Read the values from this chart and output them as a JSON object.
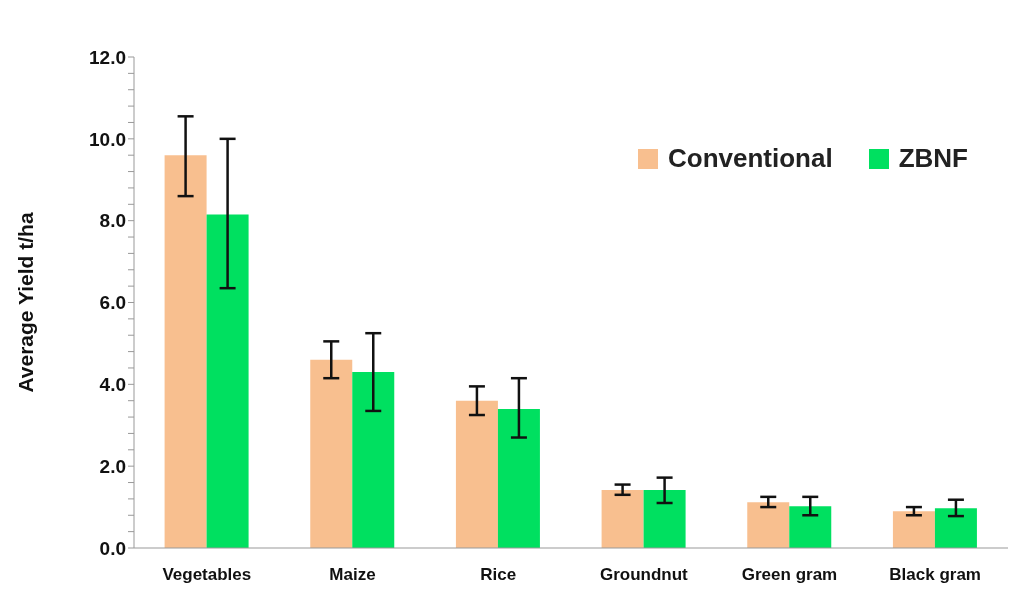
{
  "chart_data": {
    "type": "bar",
    "ylabel": "Average Yield t/ha",
    "categories": [
      "Vegetables",
      "Maize",
      "Rice",
      "Groundnut",
      "Green gram",
      "Black gram"
    ],
    "series": [
      {
        "name": "Conventional",
        "color": "#f8bf8f",
        "values": [
          9.6,
          4.6,
          3.6,
          1.42,
          1.12,
          0.9
        ],
        "errors": [
          [
            8.6,
            10.55
          ],
          [
            4.15,
            5.05
          ],
          [
            3.25,
            3.95
          ],
          [
            1.3,
            1.55
          ],
          [
            1.0,
            1.25
          ],
          [
            0.8,
            1.0
          ]
        ]
      },
      {
        "name": "ZBNF",
        "color": "#00e060",
        "values": [
          8.15,
          4.3,
          3.4,
          1.42,
          1.02,
          0.97
        ],
        "errors": [
          [
            6.35,
            10.0
          ],
          [
            3.35,
            5.25
          ],
          [
            2.7,
            4.15
          ],
          [
            1.1,
            1.72
          ],
          [
            0.8,
            1.25
          ],
          [
            0.78,
            1.18
          ]
        ]
      }
    ],
    "ylim": [
      0,
      12
    ],
    "yticks": [
      {
        "value": 0,
        "label": "0.0"
      },
      {
        "value": 0.4,
        "label": null
      },
      {
        "value": 0.8,
        "label": null
      },
      {
        "value": 1.2,
        "label": null
      },
      {
        "value": 1.6,
        "label": null
      },
      {
        "value": 2,
        "label": "2.0"
      },
      {
        "value": 2.4,
        "label": null
      },
      {
        "value": 2.8,
        "label": null
      },
      {
        "value": 3.2,
        "label": null
      },
      {
        "value": 3.6,
        "label": null
      },
      {
        "value": 4,
        "label": "4.0"
      },
      {
        "value": 4.4,
        "label": null
      },
      {
        "value": 4.8,
        "label": null
      },
      {
        "value": 5.2,
        "label": null
      },
      {
        "value": 5.6,
        "label": null
      },
      {
        "value": 6,
        "label": "6.0"
      },
      {
        "value": 6.4,
        "label": null
      },
      {
        "value": 6.8,
        "label": null
      },
      {
        "value": 7.2,
        "label": null
      },
      {
        "value": 7.6,
        "label": null
      },
      {
        "value": 8,
        "label": "8.0"
      },
      {
        "value": 8.4,
        "label": null
      },
      {
        "value": 8.8,
        "label": null
      },
      {
        "value": 9.2,
        "label": null
      },
      {
        "value": 9.6,
        "label": null
      },
      {
        "value": 10,
        "label": "10.0"
      },
      {
        "value": 10.4,
        "label": null
      },
      {
        "value": 10.8,
        "label": null
      },
      {
        "value": 11.2,
        "label": null
      },
      {
        "value": 11.6,
        "label": null
      },
      {
        "value": 12,
        "label": "12.0"
      }
    ],
    "grid": false,
    "legend": "top right"
  }
}
